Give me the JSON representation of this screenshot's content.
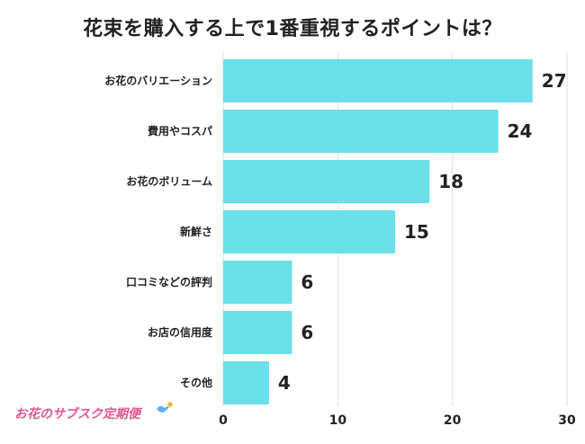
{
  "title": "花束を購入する上で1番重視するポイントは？",
  "brand": {
    "text": "お花のサブスク定期便"
  },
  "colors": {
    "bar": "#6ae0e8",
    "grid": "#dddddd",
    "text": "#222222",
    "brand": "#e0568c"
  },
  "chart_data": {
    "type": "bar",
    "orientation": "horizontal",
    "categories": [
      "お花のバリエーション",
      "費用やコスパ",
      "お花のボリューム",
      "新鮮さ",
      "口コミなどの評判",
      "お店の信用度",
      "その他"
    ],
    "values": [
      27,
      24,
      18,
      15,
      6,
      6,
      4
    ],
    "xlim": [
      0,
      30
    ],
    "xticks": [
      0,
      10,
      20,
      30
    ],
    "grid": true,
    "legend": "none"
  }
}
